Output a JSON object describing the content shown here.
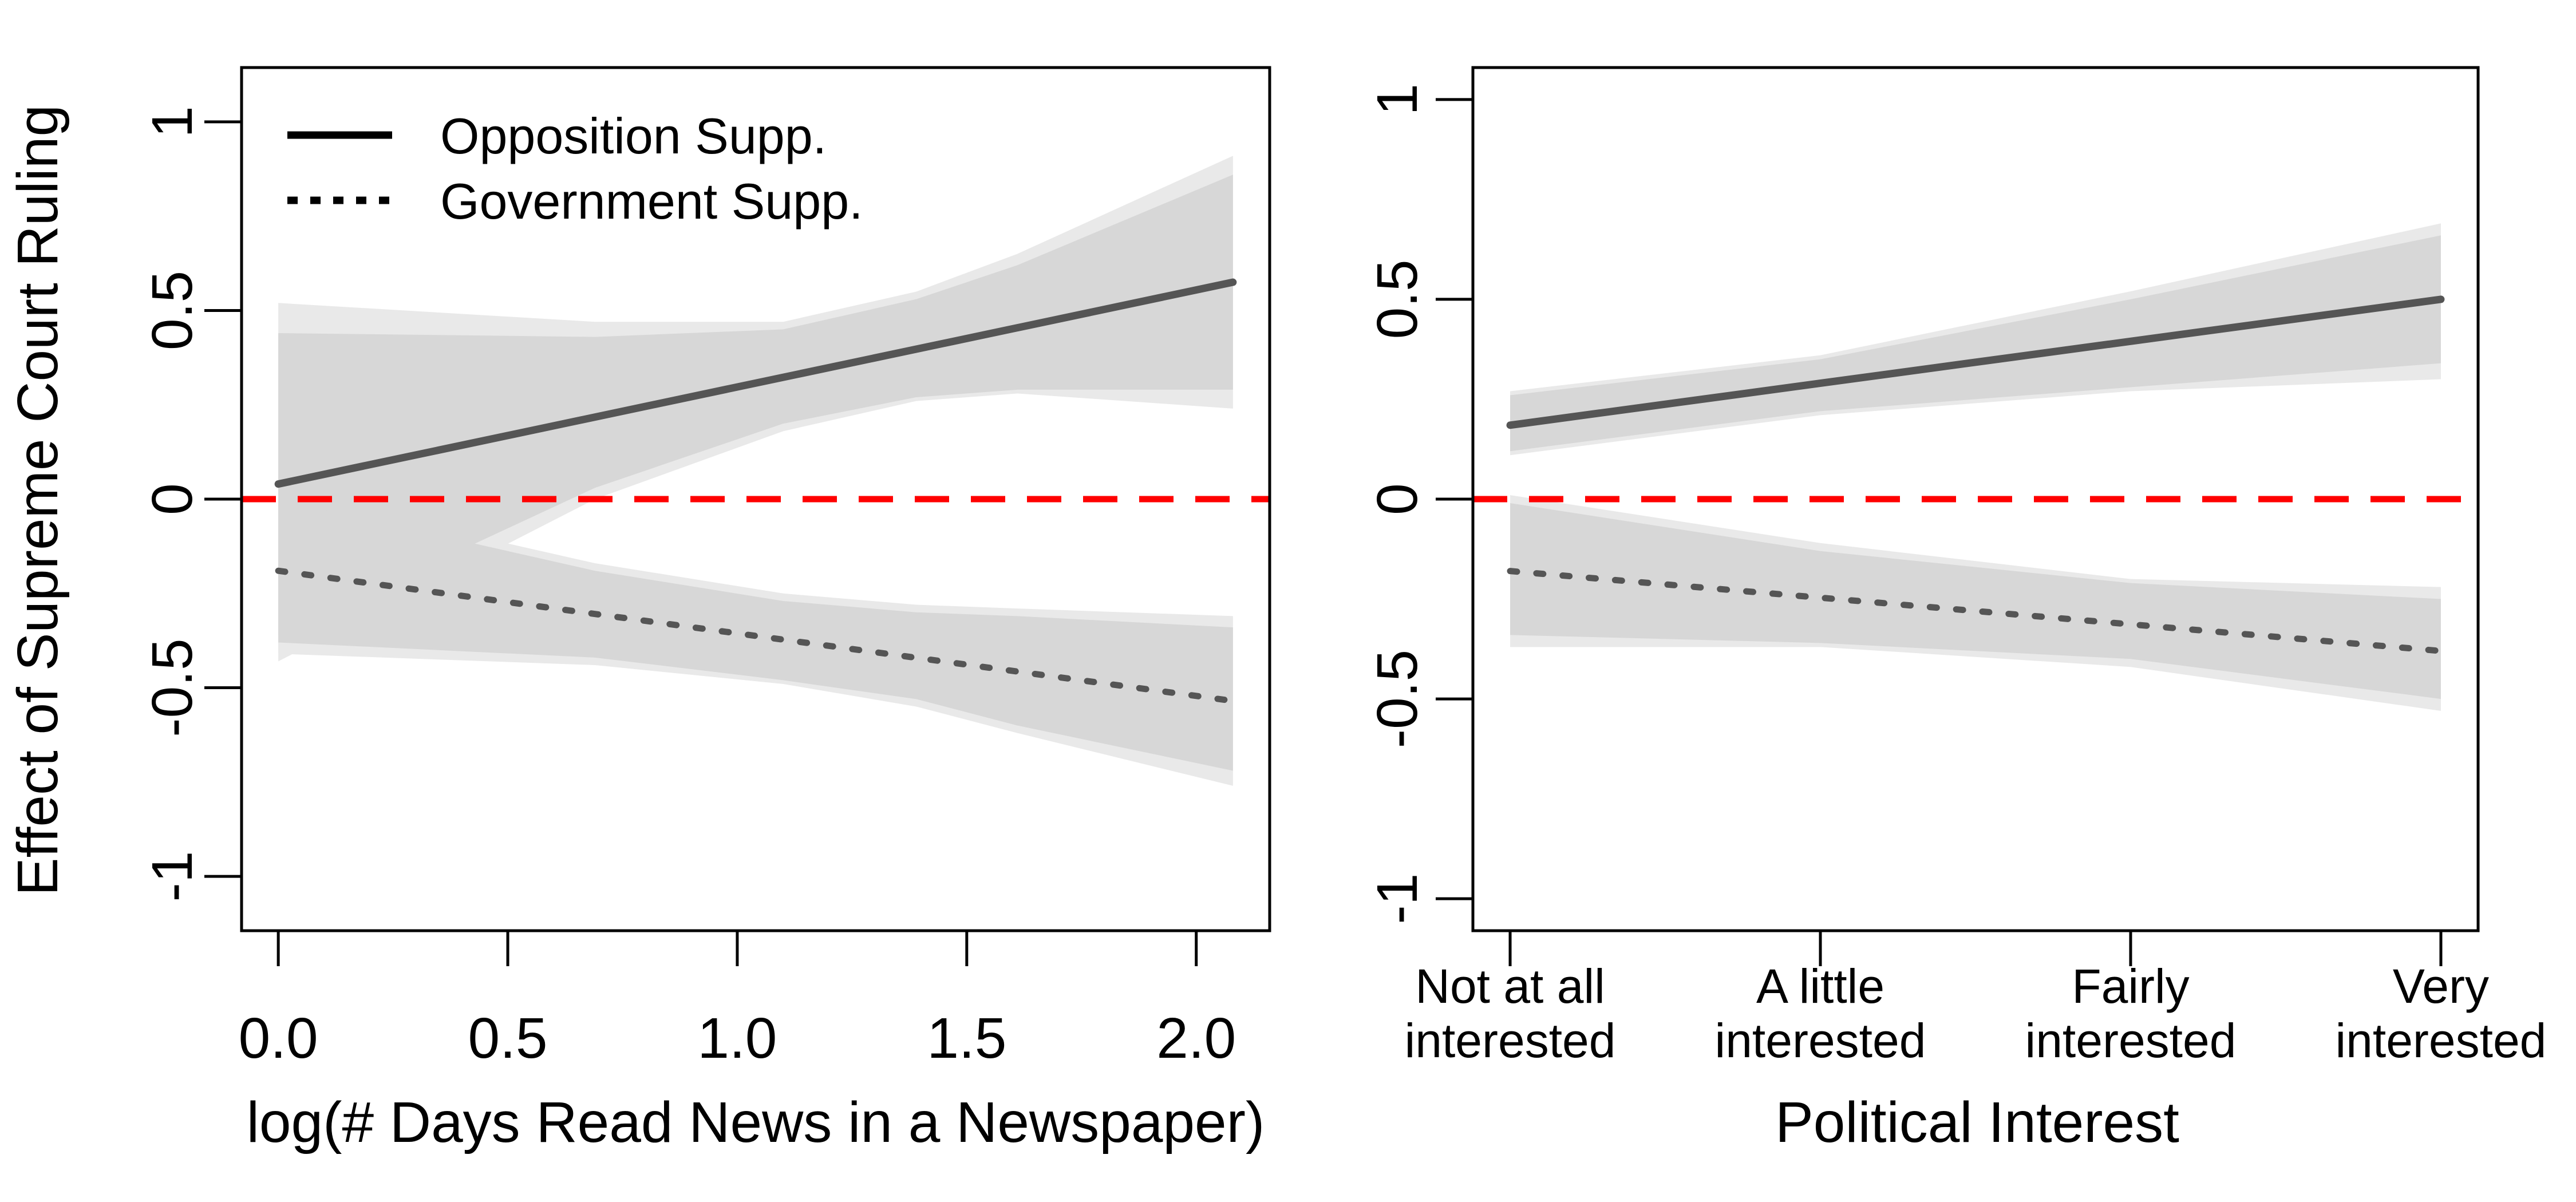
{
  "colors": {
    "band_outer": "#e9e9e9",
    "band_inner": "#d7d7d7",
    "line": "#555555",
    "reference": "#ff0000",
    "frame": "#000000"
  },
  "chart_data": [
    {
      "type": "line",
      "panel": "left",
      "xlabel": "log(# Days Read News in a Newspaper)",
      "ylabel": "Effect of Supreme Court Ruling",
      "xlim": [
        -0.08,
        2.16
      ],
      "ylim": [
        -1.144,
        1.144
      ],
      "xticks": [
        0,
        0.5,
        1,
        1.5,
        2
      ],
      "xtick_labels": [
        "0.0",
        "0.5",
        "1.0",
        "1.5",
        "2.0"
      ],
      "yticks": [
        -1,
        -0.5,
        0,
        0.5,
        1
      ],
      "ytick_labels": [
        "-1",
        "-0.5",
        "0",
        "0.5",
        "1"
      ],
      "reference_line": 0,
      "legend": {
        "placement": "top-left",
        "entries": [
          {
            "label": "Opposition Supp.",
            "style": "solid"
          },
          {
            "label": "Government Supp.",
            "style": "dotted"
          }
        ]
      },
      "series": [
        {
          "name": "Opposition Supp.",
          "style": "solid",
          "x": [
            0,
            2.08
          ],
          "y": [
            0.04,
            0.575
          ],
          "band_x": [
            0,
            0.69,
            1.1,
            1.39,
            1.61,
            2.08
          ],
          "outer_upper": [
            0.52,
            0.47,
            0.47,
            0.55,
            0.65,
            0.91
          ],
          "outer_lower": [
            -0.43,
            0.0,
            0.18,
            0.26,
            0.28,
            0.24
          ],
          "inner_upper": [
            0.44,
            0.43,
            0.45,
            0.53,
            0.62,
            0.86
          ],
          "inner_lower": [
            -0.36,
            0.03,
            0.2,
            0.27,
            0.29,
            0.29
          ]
        },
        {
          "name": "Government Supp.",
          "style": "dotted",
          "x": [
            0,
            2.08
          ],
          "y": [
            -0.19,
            -0.535
          ],
          "band_x": [
            0,
            0.69,
            1.1,
            1.39,
            1.61,
            2.08
          ],
          "outer_upper": [
            0.02,
            -0.17,
            -0.25,
            -0.28,
            -0.29,
            -0.31
          ],
          "outer_lower": [
            -0.41,
            -0.44,
            -0.49,
            -0.55,
            -0.62,
            -0.76
          ],
          "inner_upper": [
            0.0,
            -0.19,
            -0.27,
            -0.3,
            -0.31,
            -0.34
          ],
          "inner_lower": [
            -0.38,
            -0.42,
            -0.48,
            -0.53,
            -0.6,
            -0.72
          ]
        }
      ]
    },
    {
      "type": "line",
      "panel": "right",
      "xlabel": "Political Interest",
      "ylabel": "",
      "xlim": [
        0.88,
        4.12
      ],
      "ylim": [
        -1.08,
        1.08
      ],
      "xticks": [
        1,
        2,
        3,
        4
      ],
      "xtick_labels": [
        [
          "Not at all",
          "interested"
        ],
        [
          "A little",
          "interested"
        ],
        [
          "Fairly",
          "interested"
        ],
        [
          "Very",
          "interested"
        ]
      ],
      "yticks": [
        -1,
        -0.5,
        0,
        0.5,
        1
      ],
      "ytick_labels": [
        "-1",
        "-0.5",
        "0",
        "0.5",
        "1"
      ],
      "reference_line": 0,
      "series": [
        {
          "name": "Opposition Supp.",
          "style": "solid",
          "x": [
            1,
            4
          ],
          "y": [
            0.185,
            0.5
          ],
          "band_x": [
            1,
            2,
            3,
            4
          ],
          "outer_upper": [
            0.27,
            0.36,
            0.52,
            0.69
          ],
          "outer_lower": [
            0.11,
            0.21,
            0.27,
            0.3
          ],
          "inner_upper": [
            0.26,
            0.35,
            0.5,
            0.66
          ],
          "inner_lower": [
            0.12,
            0.22,
            0.28,
            0.34
          ]
        },
        {
          "name": "Government Supp.",
          "style": "dotted",
          "x": [
            1,
            4
          ],
          "y": [
            -0.18,
            -0.38
          ],
          "band_x": [
            1,
            2,
            3,
            4
          ],
          "outer_upper": [
            0.01,
            -0.11,
            -0.2,
            -0.22
          ],
          "outer_lower": [
            -0.37,
            -0.37,
            -0.42,
            -0.53
          ],
          "inner_upper": [
            -0.01,
            -0.13,
            -0.21,
            -0.25
          ],
          "inner_lower": [
            -0.34,
            -0.36,
            -0.4,
            -0.5
          ]
        }
      ]
    }
  ]
}
